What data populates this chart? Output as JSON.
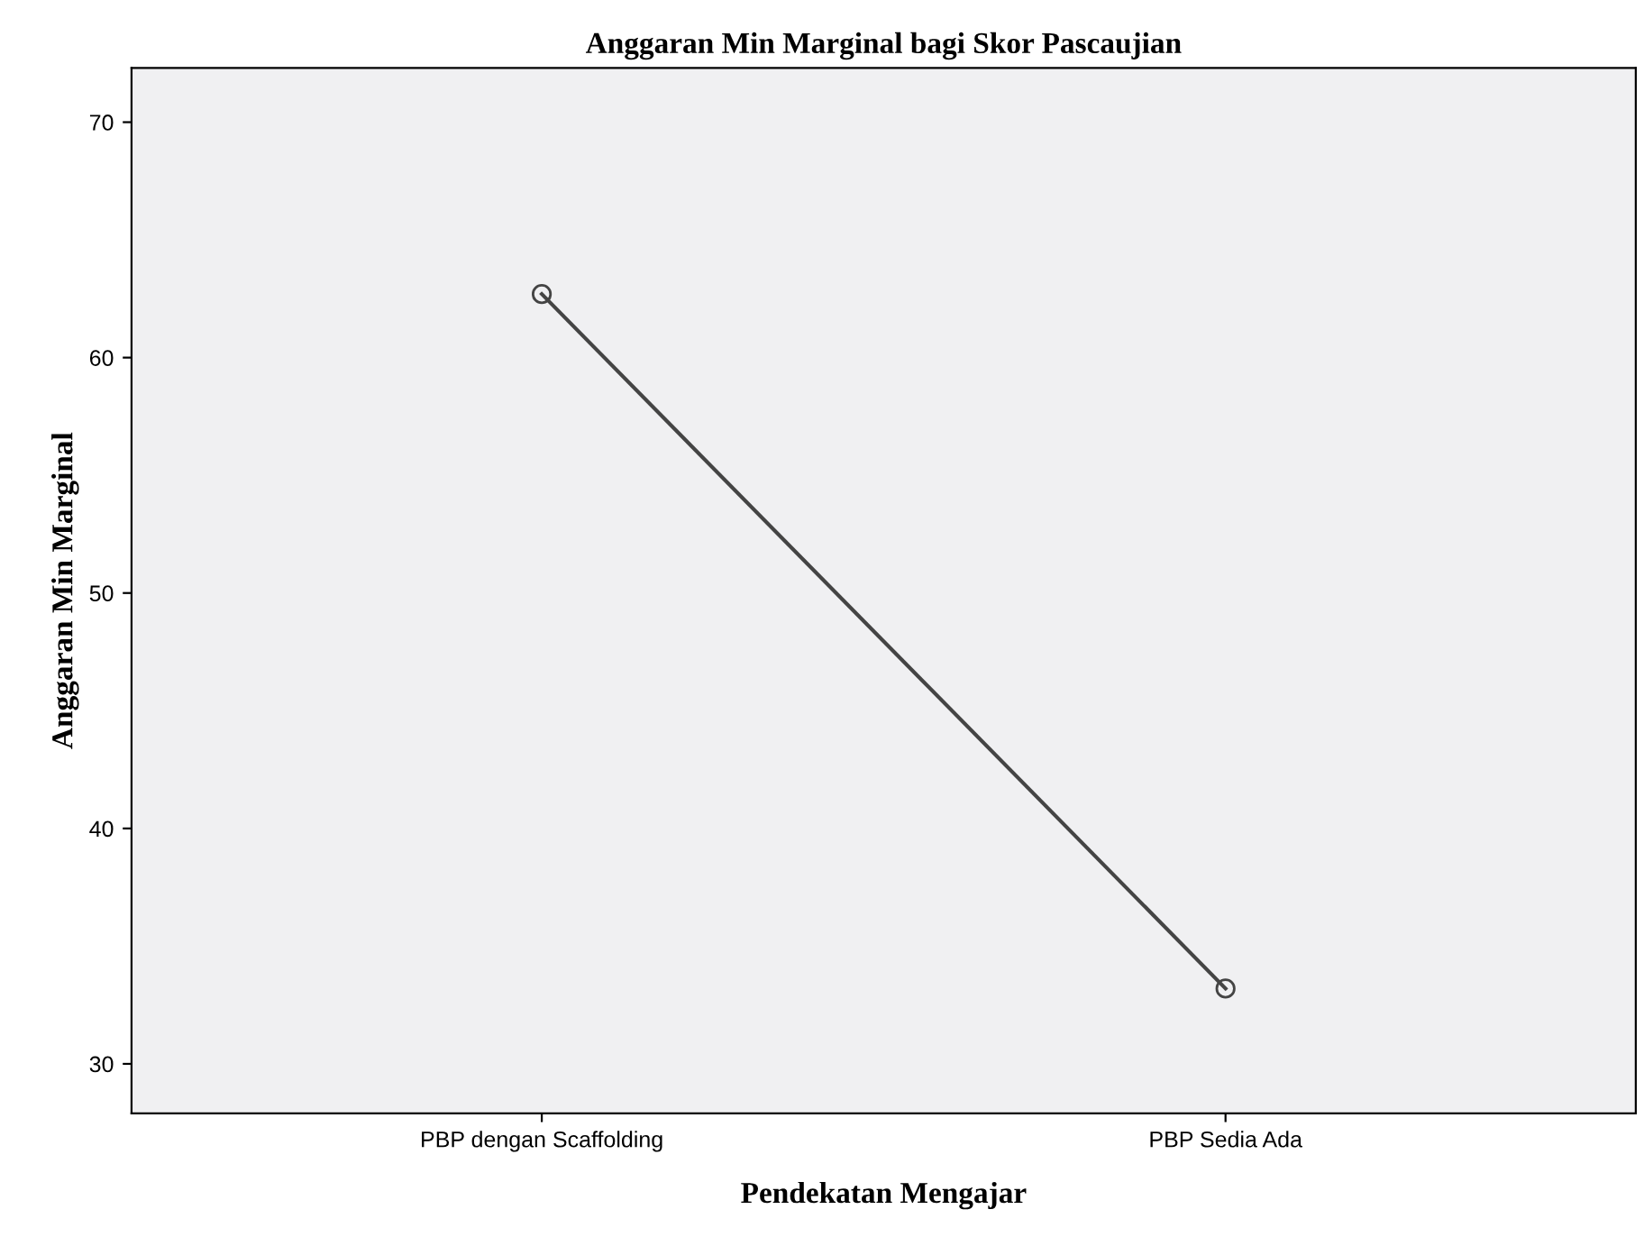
{
  "chart_data": {
    "type": "line",
    "title": "Anggaran Min Marginal bagi Skor Pascaujian",
    "xlabel": "Pendekatan Mengajar",
    "ylabel": "Anggaran Min Marginal",
    "categories": [
      "PBP dengan Scaffolding",
      "PBP Sedia Ada"
    ],
    "series": [
      {
        "color": "#444444",
        "values": [
          62.7,
          33.2
        ]
      }
    ],
    "ylim": [
      27.9,
      72.3
    ],
    "yticks": [
      30,
      40,
      50,
      60,
      70
    ],
    "grid": false,
    "legend": false,
    "marker": "circle",
    "line_style": "solid"
  }
}
